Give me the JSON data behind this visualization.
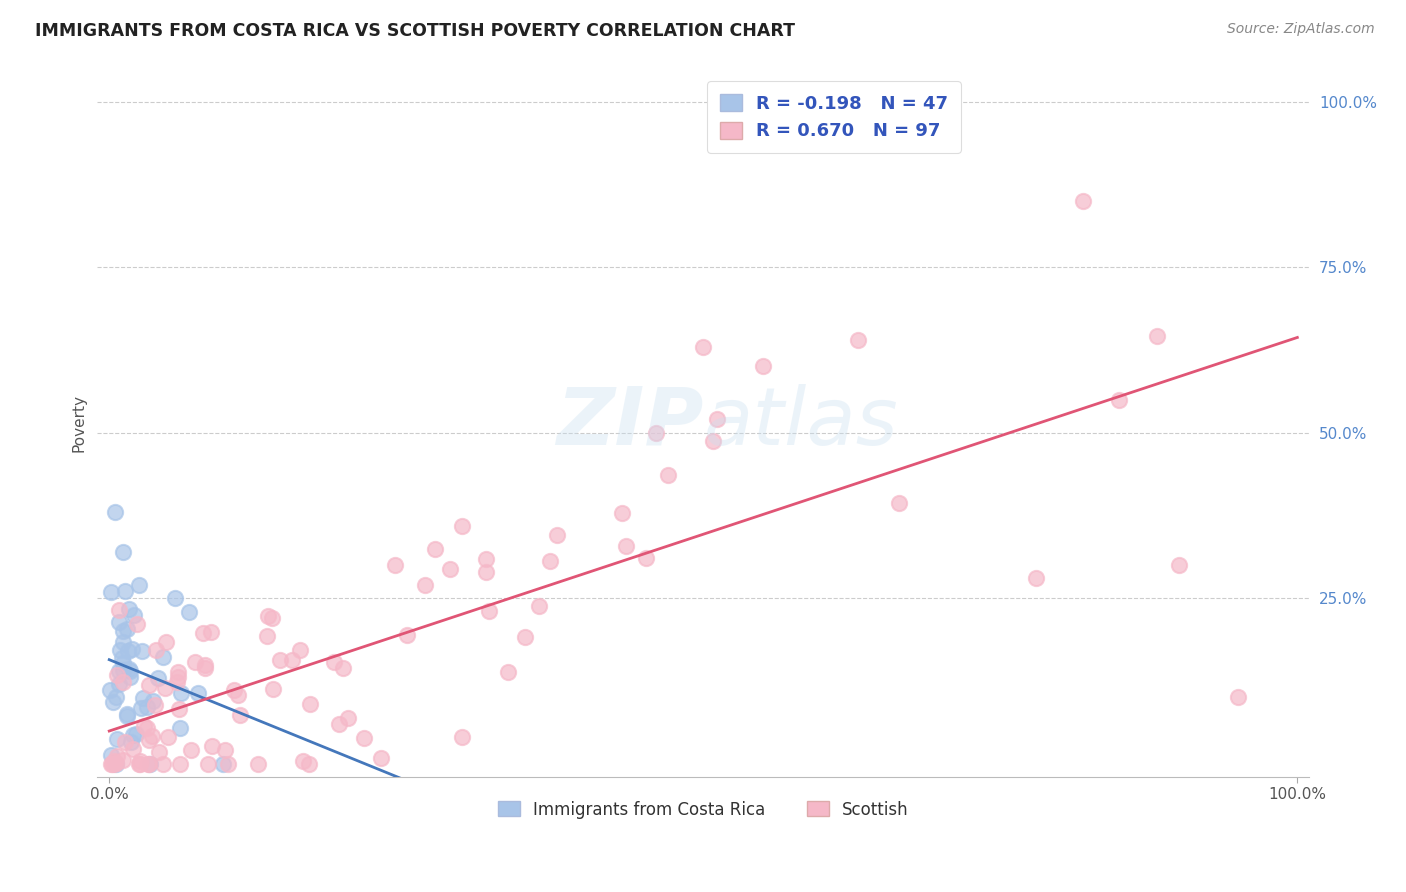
{
  "title": "IMMIGRANTS FROM COSTA RICA VS SCOTTISH POVERTY CORRELATION CHART",
  "source": "Source: ZipAtlas.com",
  "ylabel": "Poverty",
  "series1_label": "Immigrants from Costa Rica",
  "series2_label": "Scottish",
  "series1_color": "#a8c4e8",
  "series2_color": "#f5b8c8",
  "series1_line_color": "#4477bb",
  "series2_line_color": "#e05575",
  "legend_text_color": "#3355bb",
  "ytick_color": "#5588cc",
  "R1": -0.198,
  "N1": 47,
  "R2": 0.67,
  "N2": 97,
  "background_color": "#ffffff",
  "grid_color": "#cccccc",
  "title_color": "#222222",
  "source_color": "#888888",
  "ylabel_color": "#555555",
  "xtick_color": "#555555"
}
